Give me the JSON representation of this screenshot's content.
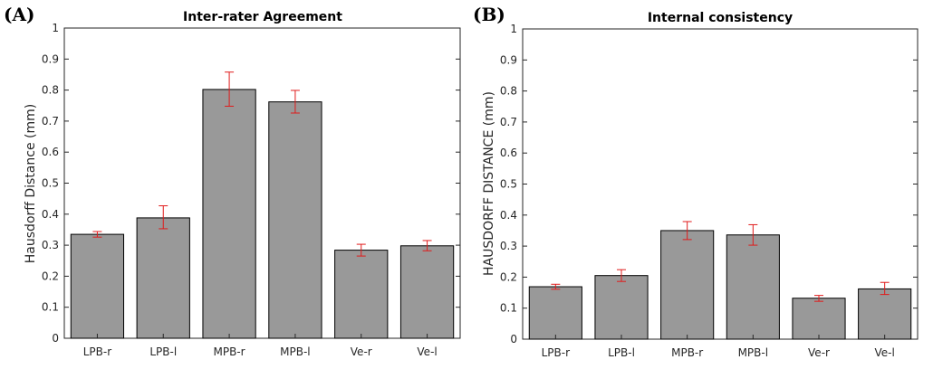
{
  "colors": {
    "bar_fill": "#999999",
    "bar_stroke": "#000000",
    "error_bar": "#e01b1b",
    "axes": "#262626"
  },
  "chart_data": [
    {
      "panel": "(A)",
      "type": "bar",
      "title": "Inter-rater Agreement",
      "xlabel": "",
      "ylabel": "Hausdorff Distance (mm)",
      "ylim": [
        0,
        1
      ],
      "yticks": [
        "0",
        "0.1",
        "0.2",
        "0.3",
        "0.4",
        "0.5",
        "0.6",
        "0.7",
        "0.8",
        "0.9",
        "1"
      ],
      "grid": false,
      "categories": [
        "LPB-r",
        "LPB-l",
        "MPB-r",
        "MPB-l",
        "Ve-r",
        "Ve-l"
      ],
      "values": [
        0.335,
        0.388,
        0.802,
        0.762,
        0.284,
        0.298
      ],
      "error_lower": [
        0.326,
        0.353,
        0.748,
        0.726,
        0.265,
        0.282
      ],
      "error_upper": [
        0.344,
        0.427,
        0.858,
        0.799,
        0.303,
        0.315
      ]
    },
    {
      "panel": "(B)",
      "type": "bar",
      "title": "Internal consistency",
      "xlabel": "",
      "ylabel": "HAUSDORFF DISTANCE (mm)",
      "ylim": [
        0,
        1
      ],
      "yticks": [
        "0",
        "0.1",
        "0.2",
        "0.3",
        "0.4",
        "0.5",
        "0.6",
        "0.7",
        "0.8",
        "0.9",
        "1"
      ],
      "grid": false,
      "categories": [
        "LPB-r",
        "LPB-l",
        "MPB-r",
        "MPB-l",
        "Ve-r",
        "Ve-l"
      ],
      "values": [
        0.169,
        0.205,
        0.35,
        0.336,
        0.132,
        0.162
      ],
      "error_lower": [
        0.161,
        0.186,
        0.321,
        0.303,
        0.122,
        0.144
      ],
      "error_upper": [
        0.177,
        0.224,
        0.379,
        0.369,
        0.141,
        0.183
      ]
    }
  ]
}
